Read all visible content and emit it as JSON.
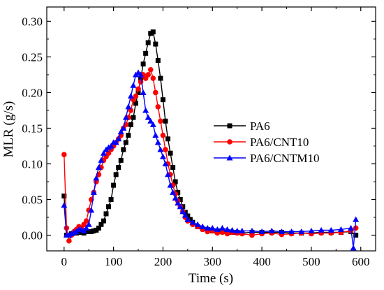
{
  "chart_data": {
    "type": "line",
    "xlabel": "Time (s)",
    "ylabel": "MLR (g/s)",
    "xlim": [
      -35,
      630
    ],
    "ylim": [
      -0.022,
      0.32
    ],
    "xticks": [
      0,
      100,
      200,
      300,
      400,
      500,
      600
    ],
    "yticks": [
      0.0,
      0.05,
      0.1,
      0.15,
      0.2,
      0.25,
      0.3
    ],
    "ytick_labels": [
      "0.00",
      "0.05",
      "0.10",
      "0.15",
      "0.20",
      "0.25",
      "0.30"
    ],
    "grid": false,
    "legend_position": "center-right",
    "series": [
      {
        "name": "PA6",
        "color": "#000000",
        "marker": "square",
        "x": [
          0,
          5,
          10,
          15,
          20,
          25,
          30,
          35,
          40,
          45,
          50,
          55,
          60,
          65,
          70,
          75,
          80,
          85,
          90,
          95,
          100,
          105,
          110,
          115,
          120,
          125,
          130,
          135,
          140,
          145,
          150,
          155,
          160,
          165,
          170,
          175,
          180,
          185,
          190,
          195,
          200,
          205,
          210,
          215,
          220,
          225,
          230,
          235,
          240,
          245,
          250,
          255,
          260,
          270,
          280,
          290,
          300,
          310,
          320,
          330,
          340,
          350,
          360,
          380,
          400,
          420,
          440,
          460,
          480,
          500,
          520,
          540,
          560,
          580,
          590
        ],
        "y": [
          0.055,
          0.0,
          0.0,
          0.002,
          0.003,
          0.003,
          0.004,
          0.004,
          0.003,
          0.005,
          0.005,
          0.005,
          0.006,
          0.007,
          0.01,
          0.015,
          0.02,
          0.03,
          0.04,
          0.05,
          0.07,
          0.085,
          0.095,
          0.105,
          0.12,
          0.13,
          0.14,
          0.155,
          0.165,
          0.185,
          0.2,
          0.22,
          0.24,
          0.255,
          0.27,
          0.283,
          0.285,
          0.268,
          0.245,
          0.22,
          0.19,
          0.16,
          0.135,
          0.115,
          0.095,
          0.075,
          0.06,
          0.05,
          0.04,
          0.032,
          0.027,
          0.022,
          0.018,
          0.012,
          0.009,
          0.008,
          0.006,
          0.005,
          0.005,
          0.004,
          0.004,
          0.004,
          0.003,
          0.004,
          0.004,
          0.004,
          0.004,
          0.003,
          0.003,
          0.003,
          0.004,
          0.004,
          0.004,
          0.005,
          0.0
        ]
      },
      {
        "name": "PA6/CNT10",
        "color": "#ff0000",
        "marker": "circle",
        "x": [
          0,
          5,
          10,
          15,
          20,
          25,
          30,
          35,
          40,
          45,
          50,
          55,
          60,
          65,
          70,
          75,
          80,
          85,
          90,
          95,
          100,
          105,
          110,
          115,
          120,
          125,
          130,
          135,
          140,
          145,
          150,
          155,
          160,
          165,
          170,
          175,
          180,
          185,
          190,
          195,
          200,
          205,
          210,
          215,
          220,
          225,
          230,
          235,
          240,
          245,
          250,
          260,
          270,
          280,
          290,
          300,
          310,
          320,
          330,
          340,
          350,
          360,
          380,
          400,
          420,
          440,
          460,
          480,
          500,
          520,
          540,
          560,
          580,
          590
        ],
        "y": [
          0.113,
          0.01,
          -0.008,
          0.0,
          0.005,
          0.008,
          0.012,
          0.01,
          0.015,
          0.02,
          0.035,
          0.05,
          0.06,
          0.075,
          0.085,
          0.095,
          0.105,
          0.11,
          0.115,
          0.12,
          0.125,
          0.13,
          0.135,
          0.14,
          0.15,
          0.155,
          0.165,
          0.175,
          0.19,
          0.195,
          0.205,
          0.215,
          0.225,
          0.22,
          0.225,
          0.232,
          0.22,
          0.2,
          0.18,
          0.16,
          0.14,
          0.12,
          0.1,
          0.085,
          0.07,
          0.058,
          0.048,
          0.04,
          0.033,
          0.025,
          0.02,
          0.015,
          0.012,
          0.008,
          0.005,
          0.006,
          0.003,
          0.004,
          0.002,
          0.004,
          0.003,
          0.002,
          0.0,
          0.002,
          0.003,
          0.001,
          0.002,
          0.003,
          0.002,
          0.003,
          0.003,
          0.004,
          0.006,
          0.01
        ]
      },
      {
        "name": "PA6/CNTM10",
        "color": "#0000ff",
        "marker": "triangle",
        "x": [
          0,
          5,
          10,
          15,
          20,
          25,
          30,
          35,
          40,
          45,
          50,
          55,
          60,
          65,
          70,
          75,
          80,
          85,
          90,
          95,
          100,
          105,
          110,
          115,
          120,
          125,
          130,
          135,
          140,
          145,
          150,
          155,
          160,
          165,
          170,
          175,
          180,
          185,
          190,
          195,
          200,
          205,
          210,
          215,
          220,
          225,
          230,
          235,
          240,
          245,
          250,
          260,
          270,
          280,
          290,
          300,
          310,
          320,
          330,
          340,
          350,
          360,
          380,
          400,
          420,
          440,
          460,
          480,
          500,
          520,
          540,
          560,
          580,
          585,
          590
        ],
        "y": [
          0.042,
          0.0,
          0.0,
          0.002,
          0.004,
          0.005,
          0.008,
          0.008,
          0.006,
          0.01,
          0.015,
          0.035,
          0.06,
          0.08,
          0.095,
          0.105,
          0.115,
          0.12,
          0.123,
          0.125,
          0.13,
          0.13,
          0.135,
          0.145,
          0.15,
          0.165,
          0.18,
          0.195,
          0.21,
          0.225,
          0.228,
          0.225,
          0.2,
          0.175,
          0.165,
          0.16,
          0.155,
          0.14,
          0.13,
          0.12,
          0.11,
          0.1,
          0.085,
          0.07,
          0.06,
          0.052,
          0.045,
          0.04,
          0.033,
          0.028,
          0.022,
          0.018,
          0.015,
          0.012,
          0.01,
          0.01,
          0.008,
          0.01,
          0.008,
          0.007,
          0.006,
          0.006,
          0.006,
          0.005,
          0.006,
          0.005,
          0.005,
          0.005,
          0.006,
          0.007,
          0.007,
          0.008,
          0.01,
          -0.018,
          0.022
        ]
      }
    ]
  }
}
